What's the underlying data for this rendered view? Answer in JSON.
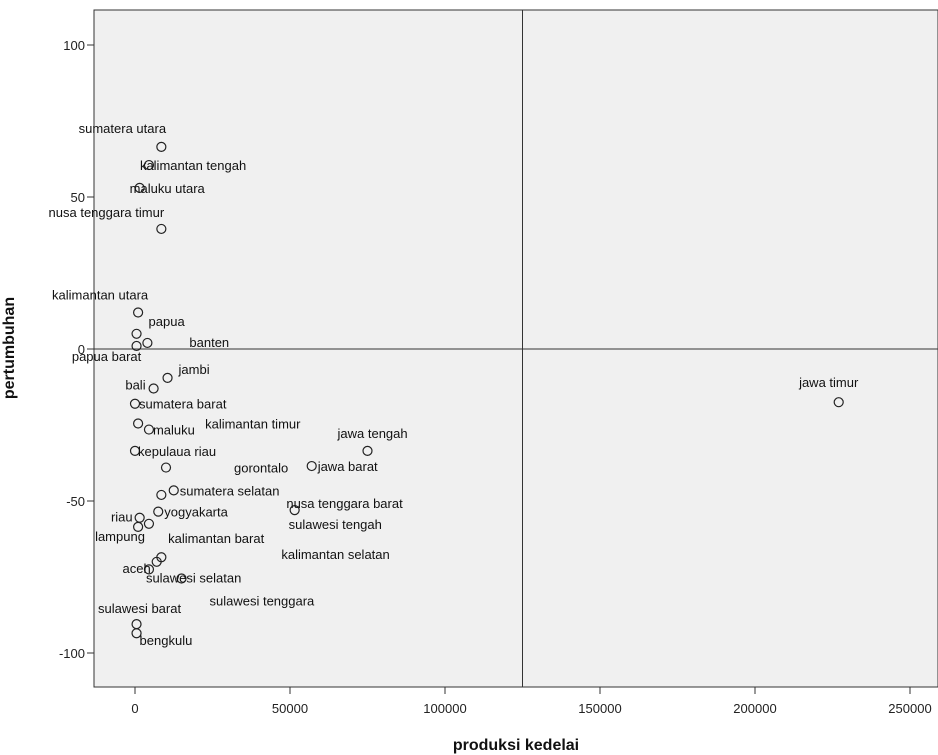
{
  "chart_data": {
    "type": "scatter",
    "title": "",
    "xlabel": "produksi kedelai",
    "ylabel": "pertumbuhan",
    "xlim": [
      -13000,
      262000
    ],
    "ylim": [
      -110,
      112
    ],
    "xticks": [
      0,
      50000,
      100000,
      150000,
      200000,
      250000
    ],
    "yticks": [
      -100,
      -50,
      0,
      50,
      100
    ],
    "xtick_labels": [
      "0",
      "50000",
      "100000",
      "150000",
      "200000",
      "250000"
    ],
    "ytick_labels": [
      "-100",
      "-50",
      "0",
      "50",
      "100"
    ],
    "reference_lines": {
      "x": 125000,
      "y": 0
    },
    "grid": false,
    "colors": {
      "plot_background": "#f0f0f0",
      "marker": "#222222",
      "axis": "#333333"
    },
    "points": [
      {
        "label": "sumatera utara",
        "x": 8500,
        "y": 66.5
      },
      {
        "label": "kalimantan tengah",
        "x": 4500,
        "y": 60.5
      },
      {
        "label": "maluku utara",
        "x": 1500,
        "y": 53.0
      },
      {
        "label": "nusa tenggara timur",
        "x": 8500,
        "y": 39.5
      },
      {
        "label": "kalimantan utara",
        "x": 1000,
        "y": 12.0
      },
      {
        "label": "papua",
        "x": 500,
        "y": 5.0
      },
      {
        "label": "banten",
        "x": 4000,
        "y": 2.0
      },
      {
        "label": "papua barat",
        "x": 500,
        "y": 1.0
      },
      {
        "label": "jambi",
        "x": 10500,
        "y": -9.5
      },
      {
        "label": "bali",
        "x": 6000,
        "y": -13.0
      },
      {
        "label": "jawa timur",
        "x": 227000,
        "y": -17.5
      },
      {
        "label": "sumatera barat",
        "x": 0,
        "y": -18.0
      },
      {
        "label": "kalimantan timur",
        "x": 1000,
        "y": -24.5
      },
      {
        "label": "maluku",
        "x": 4500,
        "y": -26.5
      },
      {
        "label": "jawa tengah",
        "x": 75000,
        "y": -33.5
      },
      {
        "label": "kepulaua riau",
        "x": 0,
        "y": -33.5
      },
      {
        "label": "jawa barat",
        "x": 57000,
        "y": -38.5
      },
      {
        "label": "gorontalo",
        "x": 10000,
        "y": -39.0
      },
      {
        "label": "sumatera selatan",
        "x": 12500,
        "y": -46.5
      },
      {
        "label": "nusa tenggara barat",
        "x": 8500,
        "y": -48.0
      },
      {
        "label": "sulawesi tengah",
        "x": 51500,
        "y": -53.0
      },
      {
        "label": "yogyakarta",
        "x": 7500,
        "y": -53.5
      },
      {
        "label": "riau",
        "x": 1500,
        "y": -55.5
      },
      {
        "label": "lampung",
        "x": 4500,
        "y": -57.5
      },
      {
        "label": "kalimantan barat",
        "x": 1000,
        "y": -58.5
      },
      {
        "label": "kalimantan selatan",
        "x": 8500,
        "y": -68.5
      },
      {
        "label": "aceh",
        "x": 7000,
        "y": -70.0
      },
      {
        "label": "sulawesi selatan",
        "x": 4500,
        "y": -72.5
      },
      {
        "label": "sulawesi tenggara",
        "x": 15000,
        "y": -75.5
      },
      {
        "label": "sulawesi barat",
        "x": 500,
        "y": -90.5
      },
      {
        "label": "bengkulu",
        "x": 500,
        "y": -93.5
      }
    ]
  }
}
